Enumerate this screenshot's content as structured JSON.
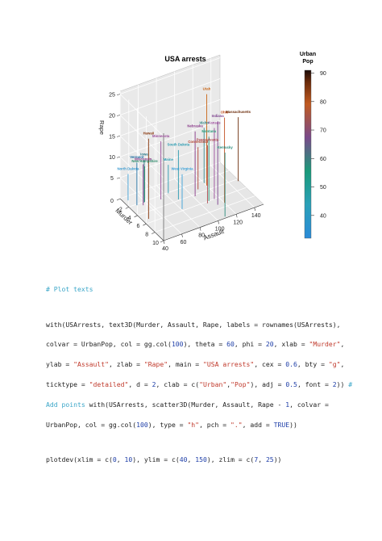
{
  "chart_data": {
    "type": "scatter",
    "title": "USA arrests",
    "xlabel": "Murder",
    "ylabel": "Assault",
    "zlabel": "Rape",
    "xlim": [
      0,
      10
    ],
    "ylim": [
      40,
      150
    ],
    "zlim": [
      7,
      25
    ],
    "x_ticks": [
      "0",
      "2",
      "4",
      "6",
      "8",
      "10"
    ],
    "y_ticks": [
      "40",
      "60",
      "80",
      "100",
      "120",
      "140"
    ],
    "z_ticks": [
      "5",
      "10",
      "15",
      "20",
      "25"
    ],
    "colorkey": {
      "title_lines": [
        "Urban",
        "Pop"
      ],
      "ticks": [
        "40",
        "50",
        "60",
        "70",
        "80",
        "90"
      ],
      "range": [
        32,
        91
      ]
    },
    "labels": [
      {
        "text": "Utah",
        "murder": 3.2,
        "assault": 120,
        "rape": 22.9,
        "urban": 80,
        "color": "#c86414"
      },
      {
        "text": "Ohio",
        "murder": 7.3,
        "assault": 120,
        "rape": 21.4,
        "urban": 75,
        "color": "#c05020"
      },
      {
        "text": "Indiana",
        "murder": 7.2,
        "assault": 113,
        "rape": 21.0,
        "urban": 65,
        "color": "#7a3e8c"
      },
      {
        "text": "Hawaii",
        "murder": 5.3,
        "assault": 46,
        "rape": 20.2,
        "urban": 83,
        "color": "#8a3a10"
      },
      {
        "text": "Kansas",
        "murder": 6.0,
        "assault": 115,
        "rape": 18.0,
        "urban": 66,
        "color": "#9a4a9a"
      },
      {
        "text": "Massachusetts",
        "murder": 4.4,
        "assault": 149,
        "rape": 16.3,
        "urban": 85,
        "color": "#6a2a08"
      },
      {
        "text": "Nebraska",
        "murder": 4.3,
        "assault": 102,
        "rape": 16.5,
        "urban": 62,
        "color": "#8a3a8a"
      },
      {
        "text": "Idaho",
        "murder": 2.6,
        "assault": 120,
        "rape": 14.2,
        "urban": 54,
        "color": "#3a8a8a"
      },
      {
        "text": "Montana",
        "murder": 6.0,
        "assault": 109,
        "rape": 16.4,
        "urban": 53,
        "color": "#2a9a7a"
      },
      {
        "text": "Minnesota",
        "murder": 2.7,
        "assault": 72,
        "rape": 14.9,
        "urban": 66,
        "color": "#9a4a9a"
      },
      {
        "text": "Pennsylvania",
        "murder": 6.3,
        "assault": 106,
        "rape": 14.9,
        "urban": 72,
        "color": "#b04a50"
      },
      {
        "text": "Kentucky",
        "murder": 9.7,
        "assault": 109,
        "rape": 16.3,
        "urban": 52,
        "color": "#2a8a7a"
      },
      {
        "text": "South Dakota",
        "murder": 3.8,
        "assault": 86,
        "rape": 12.8,
        "urban": 45,
        "color": "#2a9ab0"
      },
      {
        "text": "Connecticut",
        "murder": 3.3,
        "assault": 110,
        "rape": 11.1,
        "urban": 77,
        "color": "#b04030"
      },
      {
        "text": "Iowa",
        "murder": 2.2,
        "assault": 56,
        "rape": 11.3,
        "urban": 57,
        "color": "#2a7a8a"
      },
      {
        "text": "Vermont",
        "murder": 2.2,
        "assault": 48,
        "rape": 11.2,
        "urban": 32,
        "color": "#1a6aa0"
      },
      {
        "text": "Wisconsin",
        "murder": 2.6,
        "assault": 53,
        "rape": 10.8,
        "urban": 66,
        "color": "#8a3a8a"
      },
      {
        "text": "New Hampshire",
        "murder": 2.1,
        "assault": 57,
        "rape": 9.5,
        "urban": 56,
        "color": "#2a8a6a"
      },
      {
        "text": "Maine",
        "murder": 2.1,
        "assault": 83,
        "rape": 7.8,
        "urban": 51,
        "color": "#2a9ab0"
      },
      {
        "text": "North Dakota",
        "murder": 0.8,
        "assault": 45,
        "rape": 7.3,
        "urban": 44,
        "color": "#3a9ad0"
      },
      {
        "text": "West Virginia",
        "murder": 5.7,
        "assault": 81,
        "rape": 9.3,
        "urban": 39,
        "color": "#3aa0d8"
      }
    ]
  },
  "code": {
    "comment": "# Plot texts",
    "line1": "with(USArrests, text3D(Murder, Assault, Rape, labels = rownames(USArrests),",
    "line2_a": "colvar = UrbanPop, col = gg.col(",
    "line2_n1": "100",
    "line2_b": "), theta = ",
    "line2_n2": "60",
    "line2_c": ", phi = ",
    "line2_n3": "20",
    "line2_d": ", xlab = ",
    "line2_s1": "\"Murder\"",
    "line2_e": ",",
    "line3_a": "ylab = ",
    "line3_s1": "\"Assault\"",
    "line3_b": ", zlab = ",
    "line3_s2": "\"Rape\"",
    "line3_c": ", main = ",
    "line3_s3": "\"USA arrests\"",
    "line3_d": ", cex = ",
    "line3_n1": "0.6",
    "line3_e": ", bty = ",
    "line3_s4": "\"g\"",
    "line3_f": ",",
    "line4_a": "ticktype = ",
    "line4_s1": "\"detailed\"",
    "line4_b": ", d = ",
    "line4_n1": "2",
    "line4_c": ", clab = c(",
    "line4_s2": "\"Urban\"",
    "line4_d": ",",
    "line4_s3": "\"Pop\"",
    "line4_e": "), adj = ",
    "line4_n2": "0.5",
    "line4_f": ", font = ",
    "line4_n3": "2",
    "line4_g": ")) ",
    "line4_cmt": "#",
    "line5_cmt": "Add points",
    "line5_a": " with(USArrests, scatter3D(Murder, Assault, Rape - ",
    "line5_n1": "1",
    "line5_b": ", colvar =",
    "line6_a": "UrbanPop, col = gg.col(",
    "line6_n1": "100",
    "line6_b": "), type = ",
    "line6_s1": "\"h\"",
    "line6_c": ", pch = ",
    "line6_s2": "\".\"",
    "line6_d": ", add = ",
    "line6_k1": "TRUE",
    "line6_e": "))",
    "line7_a": "plotdev(xlim = c(",
    "line7_n1": "0",
    "line7_b": ", ",
    "line7_n2": "10",
    "line7_c": "), ylim = c(",
    "line7_n3": "40",
    "line7_d": ", ",
    "line7_n4": "150",
    "line7_e": "), zlim = c(",
    "line7_n5": "7",
    "line7_f": ", ",
    "line7_n6": "25",
    "line7_g": "))"
  }
}
